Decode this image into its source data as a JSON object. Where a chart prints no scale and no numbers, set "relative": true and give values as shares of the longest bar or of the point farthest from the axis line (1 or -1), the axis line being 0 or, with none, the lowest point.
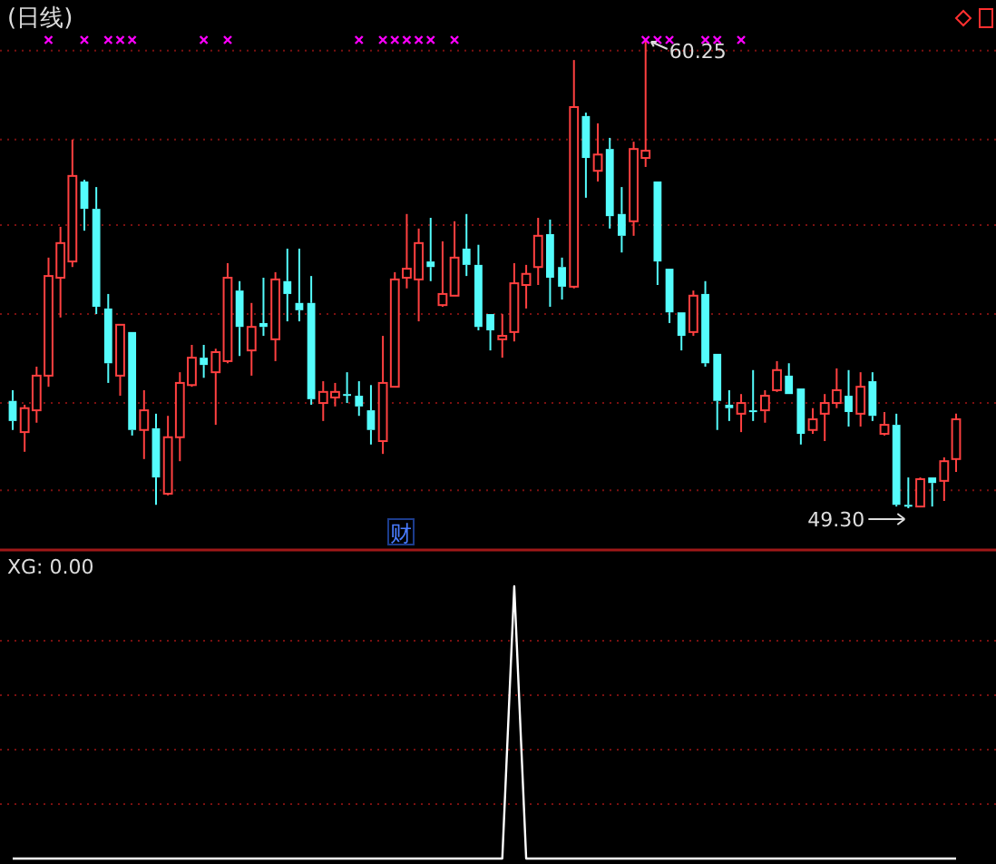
{
  "chart_data": [
    {
      "type": "candlestick",
      "title": "(日线)",
      "categories": [
        null,
        null,
        null,
        null,
        null,
        null,
        null,
        null,
        null,
        null,
        null,
        null,
        null,
        null,
        null,
        null,
        null,
        null,
        null,
        null,
        null,
        null,
        null,
        null,
        null,
        null,
        null,
        null,
        null,
        null,
        null,
        null,
        null,
        null,
        null,
        null,
        null,
        null,
        null,
        null,
        null,
        null,
        null,
        null,
        null,
        null,
        null,
        null,
        null,
        null,
        null,
        null,
        null,
        null,
        null,
        null,
        null,
        null,
        null,
        null,
        null,
        null,
        null,
        null,
        null,
        null,
        null,
        null,
        null,
        null,
        null,
        null,
        null,
        null,
        null,
        null,
        null,
        null,
        null,
        null
      ],
      "ohlc": [
        [
          51.81,
          52.06,
          51.13,
          51.34
        ],
        [
          51.08,
          51.72,
          50.62,
          51.64
        ],
        [
          51.59,
          52.61,
          51.3,
          52.4
        ],
        [
          52.4,
          55.16,
          52.14,
          54.73
        ],
        [
          54.69,
          55.88,
          53.76,
          55.5
        ],
        [
          55.07,
          57.92,
          54.94,
          57.07
        ],
        [
          56.94,
          56.98,
          55.79,
          56.3
        ],
        [
          56.3,
          56.81,
          53.84,
          54.01
        ],
        [
          53.97,
          54.31,
          52.23,
          52.69
        ],
        [
          52.4,
          53.59,
          51.93,
          53.59
        ],
        [
          53.42,
          53.42,
          51.0,
          51.13
        ],
        [
          51.13,
          52.06,
          50.45,
          51.59
        ],
        [
          51.17,
          51.51,
          49.38,
          50.02
        ],
        [
          49.64,
          51.46,
          49.6,
          50.96
        ],
        [
          50.96,
          52.48,
          50.4,
          52.23
        ],
        [
          52.18,
          53.12,
          52.14,
          52.82
        ],
        [
          52.82,
          53.12,
          52.35,
          52.65
        ],
        [
          52.48,
          53.03,
          51.25,
          52.95
        ],
        [
          52.74,
          55.03,
          52.69,
          54.69
        ],
        [
          54.39,
          54.61,
          52.86,
          53.54
        ],
        [
          52.99,
          54.1,
          52.4,
          53.54
        ],
        [
          53.63,
          54.69,
          53.33,
          53.54
        ],
        [
          53.25,
          54.82,
          52.74,
          54.65
        ],
        [
          54.61,
          55.37,
          53.67,
          54.31
        ],
        [
          54.1,
          55.37,
          53.67,
          53.93
        ],
        [
          54.1,
          54.73,
          51.72,
          51.85
        ],
        [
          51.76,
          52.27,
          51.34,
          52.02
        ],
        [
          51.89,
          52.23,
          51.68,
          52.02
        ],
        [
          51.97,
          52.48,
          51.76,
          51.93
        ],
        [
          51.93,
          52.27,
          51.46,
          51.68
        ],
        [
          51.59,
          52.18,
          50.79,
          51.13
        ],
        [
          50.87,
          53.33,
          50.57,
          52.23
        ],
        [
          52.14,
          54.82,
          52.14,
          54.65
        ],
        [
          54.69,
          56.18,
          54.44,
          54.9
        ],
        [
          54.65,
          55.84,
          53.67,
          55.5
        ],
        [
          55.07,
          56.09,
          54.61,
          54.94
        ],
        [
          54.05,
          55.54,
          54.01,
          54.31
        ],
        [
          54.27,
          56.01,
          54.27,
          55.16
        ],
        [
          55.37,
          56.18,
          54.73,
          54.99
        ],
        [
          54.99,
          55.46,
          53.46,
          53.54
        ],
        [
          53.84,
          53.84,
          52.99,
          53.46
        ],
        [
          53.25,
          53.84,
          52.82,
          53.33
        ],
        [
          53.42,
          55.03,
          53.2,
          54.56
        ],
        [
          54.52,
          54.99,
          53.97,
          54.78
        ],
        [
          54.94,
          56.09,
          54.52,
          55.67
        ],
        [
          55.71,
          56.05,
          54.01,
          54.69
        ],
        [
          54.94,
          55.16,
          54.18,
          54.48
        ],
        [
          54.48,
          59.78,
          54.44,
          58.68
        ],
        [
          58.47,
          58.55,
          56.56,
          57.49
        ],
        [
          57.19,
          58.3,
          56.94,
          57.57
        ],
        [
          57.7,
          57.96,
          55.84,
          56.13
        ],
        [
          56.18,
          56.81,
          55.28,
          55.67
        ],
        [
          56.01,
          57.87,
          55.67,
          57.7
        ],
        [
          57.49,
          60.25,
          57.28,
          57.66
        ],
        [
          56.94,
          56.94,
          54.52,
          55.07
        ],
        [
          54.9,
          54.9,
          53.63,
          53.88
        ],
        [
          53.88,
          53.88,
          52.99,
          53.33
        ],
        [
          53.42,
          54.39,
          53.33,
          54.27
        ],
        [
          54.31,
          54.61,
          52.61,
          52.69
        ],
        [
          52.91,
          52.91,
          51.13,
          51.81
        ],
        [
          51.72,
          52.06,
          51.34,
          51.64
        ],
        [
          51.51,
          51.97,
          51.08,
          51.76
        ],
        [
          51.59,
          52.53,
          51.34,
          51.55
        ],
        [
          51.59,
          52.06,
          51.3,
          51.93
        ],
        [
          52.06,
          52.74,
          52.02,
          52.53
        ],
        [
          52.4,
          52.69,
          51.97,
          51.97
        ],
        [
          52.1,
          52.1,
          50.79,
          51.04
        ],
        [
          51.13,
          51.64,
          51.04,
          51.38
        ],
        [
          51.51,
          51.97,
          50.87,
          51.76
        ],
        [
          51.76,
          52.57,
          51.64,
          52.06
        ],
        [
          51.93,
          52.53,
          51.21,
          51.55
        ],
        [
          51.51,
          52.48,
          51.21,
          52.14
        ],
        [
          52.27,
          52.48,
          51.34,
          51.46
        ],
        [
          51.04,
          51.55,
          51.0,
          51.25
        ],
        [
          51.25,
          51.51,
          49.34,
          49.38
        ],
        [
          49.38,
          50.02,
          49.3,
          49.36
        ],
        [
          49.34,
          50.02,
          49.34,
          49.98
        ],
        [
          50.02,
          50.02,
          49.34,
          49.89
        ],
        [
          49.94,
          50.49,
          49.47,
          50.4
        ],
        [
          50.45,
          51.51,
          50.15,
          51.38
        ]
      ],
      "series": [
        {
          "type": "scatter",
          "marker": "cross",
          "color": "#ff00ff",
          "values": [
            null,
            null,
            null,
            60.25,
            null,
            null,
            60.25,
            null,
            60.25,
            60.25,
            60.25,
            null,
            null,
            null,
            null,
            null,
            60.25,
            null,
            60.25,
            null,
            null,
            null,
            null,
            null,
            null,
            null,
            null,
            null,
            null,
            60.25,
            null,
            60.25,
            60.25,
            60.25,
            60.25,
            60.25,
            null,
            60.25,
            null,
            null,
            null,
            null,
            null,
            null,
            null,
            null,
            null,
            null,
            null,
            null,
            null,
            null,
            null,
            60.25,
            60.25,
            60.25,
            null,
            null,
            60.25,
            60.25,
            null,
            60.25,
            null,
            null,
            null,
            null,
            null,
            null,
            null,
            null,
            null,
            null,
            null,
            null,
            null,
            null,
            null,
            null,
            null,
            null
          ]
        }
      ],
      "yticks": [
        {
          "value": 60.0,
          "label": null
        },
        {
          "value": 57.92,
          "label": null
        },
        {
          "value": 55.92,
          "label": null
        },
        {
          "value": 53.84,
          "label": null
        },
        {
          "value": 51.76,
          "label": null
        },
        {
          "value": 49.72,
          "label": null
        }
      ],
      "grid": "y",
      "annotations": [
        "60.25",
        "49.30",
        "财"
      ]
    },
    {
      "type": "line",
      "title": "XG: 0.00",
      "relative": true,
      "color": "#ffffff",
      "ref_lines": [
        {
          "axis": "y",
          "value": 0.2,
          "color": "#7a1010",
          "line_style": "dotted"
        },
        {
          "axis": "y",
          "value": 0.4,
          "color": "#7a1010",
          "line_style": "dotted"
        },
        {
          "axis": "y",
          "value": 0.6,
          "color": "#7a1010",
          "line_style": "dotted"
        },
        {
          "axis": "y",
          "value": 0.8,
          "color": "#7a1010",
          "line_style": "dotted"
        }
      ],
      "categories": [
        null,
        null,
        null,
        null,
        null,
        null,
        null,
        null,
        null,
        null,
        null,
        null,
        null,
        null,
        null,
        null,
        null,
        null,
        null,
        null,
        null,
        null,
        null,
        null,
        null,
        null,
        null,
        null,
        null,
        null,
        null,
        null,
        null,
        null,
        null,
        null,
        null,
        null,
        null,
        null,
        null,
        null,
        null,
        null,
        null,
        null,
        null,
        null,
        null,
        null,
        null,
        null,
        null,
        null,
        null,
        null,
        null,
        null,
        null,
        null,
        null,
        null,
        null,
        null,
        null,
        null,
        null,
        null,
        null,
        null,
        null,
        null,
        null,
        null,
        null,
        null,
        null,
        null,
        null,
        null
      ],
      "values": [
        0,
        0,
        0,
        0,
        0,
        0,
        0,
        0,
        0,
        0,
        0,
        0,
        0,
        0,
        0,
        0,
        0,
        0,
        0,
        0,
        0,
        0,
        0,
        0,
        0,
        0,
        0,
        0,
        0,
        0,
        0,
        0,
        0,
        0,
        0,
        0,
        0,
        0,
        0,
        0,
        0,
        0,
        1,
        0,
        0,
        0,
        0,
        0,
        0,
        0,
        0,
        0,
        0,
        0,
        0,
        0,
        0,
        0,
        0,
        0,
        0,
        0,
        0,
        0,
        0,
        0,
        0,
        0,
        0,
        0,
        0,
        0,
        0,
        0,
        0,
        0,
        0,
        0,
        0,
        0
      ]
    }
  ]
}
